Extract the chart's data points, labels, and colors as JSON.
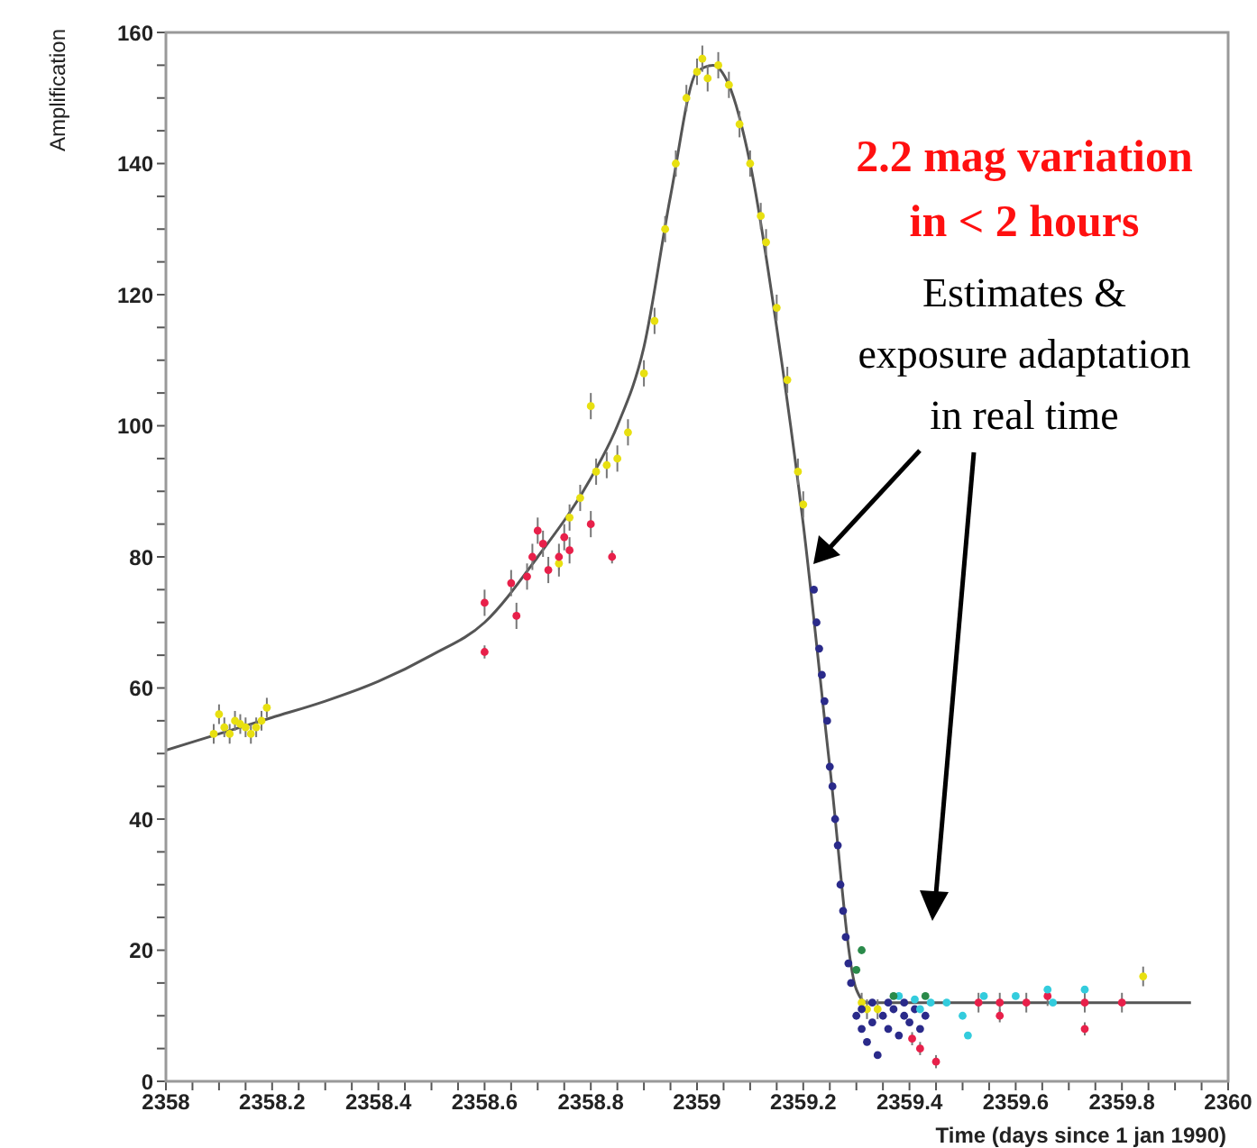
{
  "chart_data": {
    "type": "scatter",
    "xlabel": "Time (days since 1 jan 1990)",
    "ylabel": "Amplification",
    "annotations": [
      "2.2 mag variation in < 2 hours",
      "Estimates & exposure adaptation in real time"
    ],
    "xlim": [
      2358,
      2360
    ],
    "ylim": [
      0,
      160
    ],
    "xticks": [
      2358,
      {
        "value": 2358.05,
        "label": null
      },
      {
        "value": 2358.1,
        "label": null
      },
      {
        "value": 2358.15,
        "label": null
      },
      2358.2,
      {
        "value": 2358.25,
        "label": null
      },
      {
        "value": 2358.3,
        "label": null
      },
      {
        "value": 2358.35,
        "label": null
      },
      2358.4,
      {
        "value": 2358.45,
        "label": null
      },
      {
        "value": 2358.5,
        "label": null
      },
      {
        "value": 2358.55,
        "label": null
      },
      2358.6,
      {
        "value": 2358.65,
        "label": null
      },
      {
        "value": 2358.7,
        "label": null
      },
      {
        "value": 2358.75,
        "label": null
      },
      2358.8,
      {
        "value": 2358.85,
        "label": null
      },
      {
        "value": 2358.9,
        "label": null
      },
      {
        "value": 2358.95,
        "label": null
      },
      2359,
      {
        "value": 2359.05,
        "label": null
      },
      {
        "value": 2359.1,
        "label": null
      },
      {
        "value": 2359.15,
        "label": null
      },
      2359.2,
      {
        "value": 2359.25,
        "label": null
      },
      {
        "value": 2359.3,
        "label": null
      },
      {
        "value": 2359.35,
        "label": null
      },
      2359.4,
      {
        "value": 2359.45,
        "label": null
      },
      {
        "value": 2359.5,
        "label": null
      },
      {
        "value": 2359.55,
        "label": null
      },
      2359.6,
      {
        "value": 2359.65,
        "label": null
      },
      {
        "value": 2359.7,
        "label": null
      },
      {
        "value": 2359.75,
        "label": null
      },
      2359.8,
      {
        "value": 2359.85,
        "label": null
      },
      {
        "value": 2359.9,
        "label": null
      },
      {
        "value": 2359.95,
        "label": null
      },
      2360
    ],
    "yticks": [
      0,
      {
        "value": 5,
        "label": null
      },
      {
        "value": 10,
        "label": null
      },
      {
        "value": 15,
        "label": null
      },
      20,
      {
        "value": 25,
        "label": null
      },
      {
        "value": 30,
        "label": null
      },
      {
        "value": 35,
        "label": null
      },
      40,
      {
        "value": 45,
        "label": null
      },
      {
        "value": 50,
        "label": null
      },
      {
        "value": 55,
        "label": null
      },
      60,
      {
        "value": 65,
        "label": null
      },
      {
        "value": 70,
        "label": null
      },
      {
        "value": 75,
        "label": null
      },
      80,
      {
        "value": 85,
        "label": null
      },
      {
        "value": 90,
        "label": null
      },
      {
        "value": 95,
        "label": null
      },
      100,
      {
        "value": 105,
        "label": null
      },
      {
        "value": 110,
        "label": null
      },
      {
        "value": 115,
        "label": null
      },
      120,
      {
        "value": 125,
        "label": null
      },
      {
        "value": 130,
        "label": null
      },
      {
        "value": 135,
        "label": null
      },
      140,
      {
        "value": 145,
        "label": null
      },
      {
        "value": 150,
        "label": null
      },
      {
        "value": 155,
        "label": null
      },
      160
    ],
    "marker": "circle",
    "line_style": "solid",
    "series": [
      {
        "type": "line",
        "marker": "none",
        "color": "#555555",
        "x": [
          2358,
          2358.1,
          2358.2,
          2358.3,
          2358.4,
          2358.5,
          2358.6,
          2358.7,
          2358.8,
          2358.85,
          2358.9,
          2358.95,
          2359,
          2359.03,
          2359.06,
          2359.1,
          2359.15,
          2359.2,
          2359.25,
          2359.3,
          2359.32,
          2359.5,
          2359.7,
          2359.93
        ],
        "values": [
          50.5,
          53,
          55.5,
          58,
          61,
          65,
          70,
          80,
          92,
          100,
          112,
          135,
          154,
          155,
          152,
          140,
          115,
          85,
          48,
          14,
          12,
          12,
          12,
          12
        ]
      },
      {
        "color": "#e8e010",
        "x": [
          2358.09,
          2358.1,
          2358.11,
          2358.12,
          2358.13,
          2358.14,
          2358.15,
          2358.16,
          2358.17,
          2358.18,
          2358.19,
          2358.74,
          2358.76,
          2358.78,
          2358.8,
          2358.81,
          2358.83,
          2358.85,
          2358.87,
          2358.9,
          2358.92,
          2358.94,
          2358.96,
          2358.98,
          2359,
          2359.01,
          2359.02,
          2359.04,
          2359.06,
          2359.08,
          2359.1,
          2359.12,
          2359.13,
          2359.15,
          2359.17,
          2359.19,
          2359.2,
          2359.31,
          2359.32,
          2359.34,
          2359.84
        ],
        "values": [
          53,
          56,
          54,
          53,
          55,
          54.5,
          54,
          53,
          54,
          55,
          57,
          79,
          86,
          89,
          103,
          93,
          94,
          95,
          99,
          108,
          116,
          130,
          140,
          150,
          154,
          156,
          153,
          155,
          152,
          146,
          140,
          132,
          128,
          118,
          107,
          93,
          88,
          12,
          11,
          11,
          16
        ],
        "errors": [
          1.5,
          1.5,
          1.5,
          1.5,
          1.5,
          1.5,
          1.5,
          1.5,
          1.5,
          1.5,
          1.5,
          2,
          2,
          2,
          2,
          2,
          2,
          2,
          2,
          2,
          2,
          2,
          2,
          2,
          2,
          2,
          2,
          2,
          2,
          2,
          2,
          2,
          2,
          2,
          2,
          2,
          2,
          1.5,
          1.5,
          1.5,
          1.5
        ]
      },
      {
        "color": "#e8204a",
        "x": [
          2358.6,
          2358.6,
          2358.65,
          2358.66,
          2358.68,
          2358.69,
          2358.7,
          2358.71,
          2358.72,
          2358.74,
          2358.75,
          2358.76,
          2358.8,
          2358.84,
          2359.405,
          2359.42,
          2359.45,
          2359.53,
          2359.57,
          2359.57,
          2359.62,
          2359.66,
          2359.73,
          2359.73,
          2359.8
        ],
        "values": [
          73,
          65.5,
          76,
          71,
          77,
          80,
          84,
          82,
          78,
          80,
          83,
          81,
          85,
          80,
          6.5,
          5,
          3,
          12,
          12,
          10,
          12,
          13,
          12,
          8,
          12
        ],
        "errors": [
          2,
          1,
          2,
          2,
          2,
          2,
          2,
          2,
          2,
          2,
          2,
          2,
          2,
          1,
          1,
          1,
          1,
          1.5,
          1.5,
          1,
          1.5,
          1.5,
          1.5,
          1,
          1.5
        ]
      },
      {
        "color": "#2a2a8a",
        "x": [
          2359.22,
          2359.225,
          2359.23,
          2359.235,
          2359.24,
          2359.245,
          2359.25,
          2359.255,
          2359.26,
          2359.265,
          2359.27,
          2359.275,
          2359.28,
          2359.285,
          2359.29,
          2359.3,
          2359.31,
          2359.32,
          2359.33,
          2359.34,
          2359.35,
          2359.36,
          2359.37,
          2359.38,
          2359.39,
          2359.4,
          2359.41,
          2359.42,
          2359.43,
          2359.31,
          2359.33,
          2359.36,
          2359.39
        ],
        "values": [
          75,
          70,
          66,
          62,
          58,
          55,
          48,
          45,
          40,
          36,
          30,
          26,
          22,
          18,
          15,
          10,
          8,
          6,
          9,
          4,
          10,
          8,
          11,
          7,
          10,
          9,
          11,
          8,
          10,
          11,
          12,
          12,
          12
        ]
      },
      {
        "color": "#33ccdd",
        "x": [
          2359.38,
          2359.41,
          2359.42,
          2359.44,
          2359.47,
          2359.5,
          2359.51,
          2359.54,
          2359.6,
          2359.66,
          2359.67,
          2359.73
        ],
        "values": [
          13,
          12.5,
          11,
          12,
          12,
          10,
          7,
          13,
          13,
          14,
          12,
          14
        ]
      },
      {
        "color": "#2a8a4a",
        "x": [
          2359.3,
          2359.31,
          2359.37,
          2359.43
        ],
        "values": [
          17,
          20,
          13,
          13
        ]
      }
    ]
  }
}
